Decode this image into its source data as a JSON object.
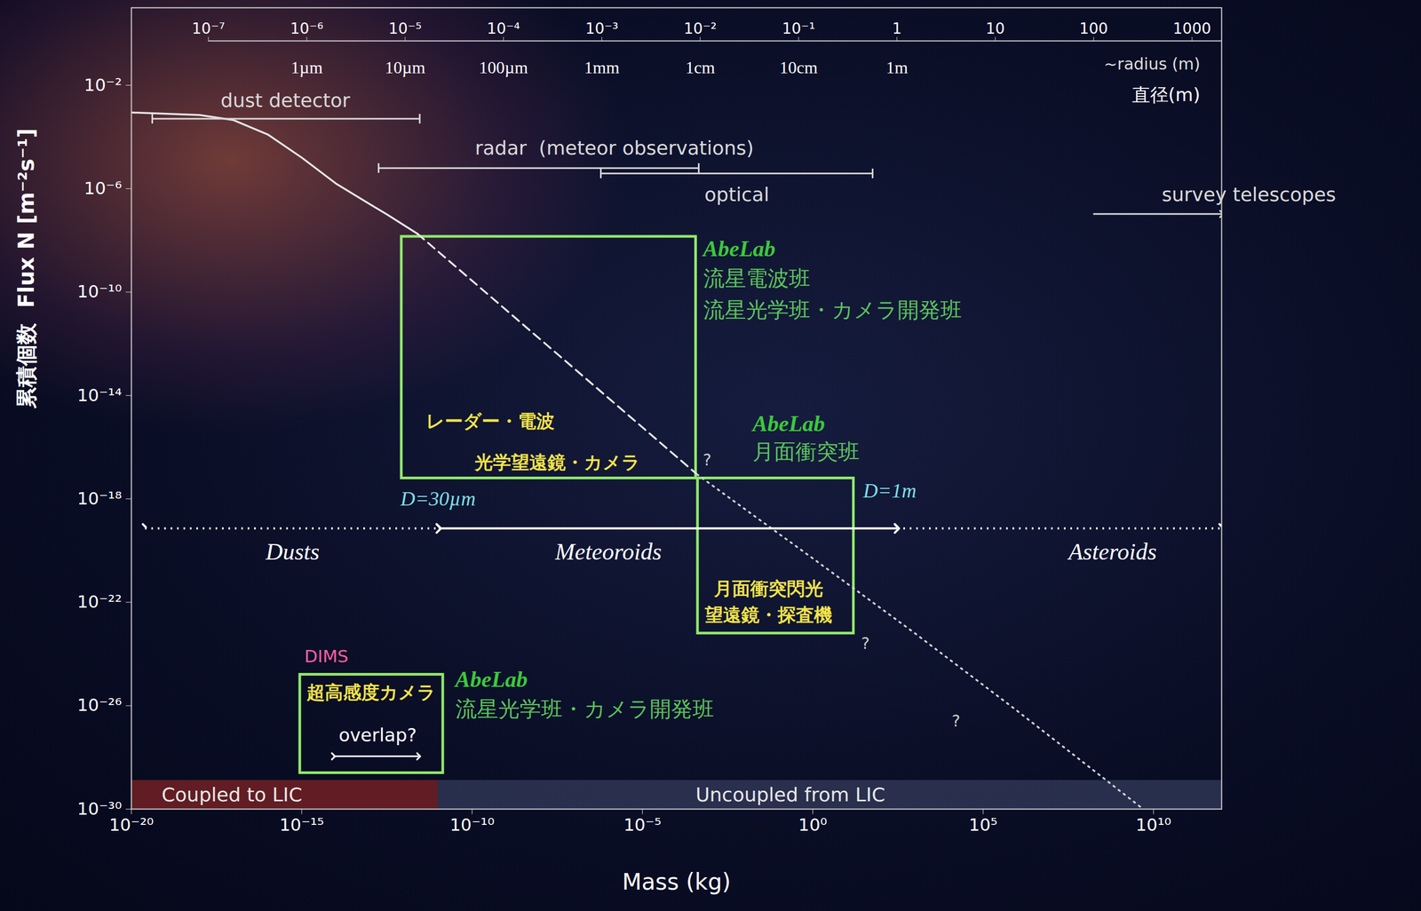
{
  "chart_data": {
    "type": "line",
    "x_label": "Mass (kg)",
    "y_label": "累積個数  Flux N [m⁻²s⁻¹]",
    "log": true,
    "xlim": [
      1e-20,
      1000000000000.0
    ],
    "ylim": [
      1e-30,
      10
    ],
    "xticks": [
      {
        "value": 1e-20,
        "label": "10⁻²⁰"
      },
      {
        "value": 1e-15,
        "label": "10⁻¹⁵"
      },
      {
        "value": 1e-10,
        "label": "10⁻¹⁰"
      },
      {
        "value": 1e-05,
        "label": "10⁻⁵"
      },
      {
        "value": 1,
        "label": "10⁰"
      },
      {
        "value": 100000.0,
        "label": "10⁵"
      },
      {
        "value": 10000000000.0,
        "label": "10¹⁰"
      }
    ],
    "yticks": [
      {
        "value": 1e-30,
        "label": "10⁻³⁰"
      },
      {
        "value": 1e-26,
        "label": "10⁻²⁶"
      },
      {
        "value": 1e-22,
        "label": "10⁻²²"
      },
      {
        "value": 1e-18,
        "label": "10⁻¹⁸"
      },
      {
        "value": 1e-14,
        "label": "10⁻¹⁴"
      },
      {
        "value": 1e-10,
        "label": "10⁻¹⁰"
      },
      {
        "value": 1e-06,
        "label": "10⁻⁶"
      },
      {
        "value": 0.01,
        "label": "10⁻²"
      }
    ],
    "x2_label": "~radius (m)",
    "x2_sublabel": "直径(m)",
    "x2lim": [
      1.65e-08,
      2000
    ],
    "x2ticks": [
      {
        "value": 1e-07,
        "label": "10⁻⁷"
      },
      {
        "value": 1e-06,
        "label": "10⁻⁶"
      },
      {
        "value": 1e-05,
        "label": "10⁻⁵"
      },
      {
        "value": 0.0001,
        "label": "10⁻⁴"
      },
      {
        "value": 0.001,
        "label": "10⁻³"
      },
      {
        "value": 0.01,
        "label": "10⁻²"
      },
      {
        "value": 0.1,
        "label": "10⁻¹"
      },
      1,
      10,
      100,
      1000
    ],
    "x2_unit_labels": [
      {
        "value": 1e-06,
        "label": "1µm"
      },
      {
        "value": 1e-05,
        "label": "10µm"
      },
      {
        "value": 0.0001,
        "label": "100µm"
      },
      {
        "value": 0.001,
        "label": "1mm"
      },
      {
        "value": 0.01,
        "label": "1cm"
      },
      {
        "value": 0.1,
        "label": "10cm"
      },
      {
        "value": 1,
        "label": "1m"
      }
    ],
    "series": [
      {
        "line_style": "solid",
        "color": "#e6e6e6",
        "x": [
          1e-20,
          1e-18,
          1e-17,
          1e-16,
          1e-15,
          1e-14,
          1e-13,
          3.2e-13,
          2.5e-12
        ],
        "values": [
          0.00089,
          0.00071,
          0.00045,
          0.000126,
          1.6e-05,
          1.6e-06,
          2.5e-07,
          1e-07,
          1.8e-08
        ]
      },
      {
        "line_style": "dashed",
        "color": "#e6e6e6",
        "x": [
          2.5e-12,
          4e-08,
          0.0004
        ],
        "values": [
          1.8e-08,
          3.1e-13,
          8.9e-18
        ]
      },
      {
        "line_style": "dotted",
        "color": "#d0d0d0",
        "x": [
          0.0004,
          1,
          1000,
          1000000.0,
          5000000000.0
        ],
        "values": [
          8.9e-18,
          5e-21,
          6.3e-24,
          6.3e-27,
          1e-30
        ]
      }
    ],
    "ranges": [
      {
        "label": "dust detector",
        "x": [
          4.1e-20,
          2.9e-12
        ],
        "y": 0.00051,
        "label_x": 3.3e-16,
        "label_y": 0.0025,
        "marker": "bar",
        "color": "#d9d9d9"
      },
      {
        "label": "radar  (meteor observations)",
        "x": [
          1.8e-13,
          0.00045
        ],
        "y": 6.3e-06,
        "label_x": 1.5e-06,
        "label_y": 3.6e-05,
        "marker": "bar",
        "color": "#d9d9d9"
      },
      {
        "label": "optical",
        "x": [
          6e-07,
          57
        ],
        "y": 3.9e-06,
        "label_x": 0.0059,
        "label_y": 5.6e-07,
        "marker": "bar",
        "color": "#d9d9d9"
      },
      {
        "label": "survey telescopes",
        "x": [
          170000000.0,
          1000000000000.0
        ],
        "y": 1.05e-07,
        "label_x": 6300000000000.0,
        "label_y": 5.6e-07,
        "marker": "arrow",
        "color": "#d9d9d9"
      }
    ],
    "classes": {
      "y": 7.2e-20,
      "label_y": 8.9e-21,
      "marker": "arrow",
      "color": "#ffffff",
      "items": [
        {
          "label": "Dusts",
          "x": [
            2.5e-20,
            1.05e-11
          ],
          "label_x": 5.4e-16,
          "line_style": "dotted"
        },
        {
          "label": "Meteoroids",
          "x": [
            1.05e-11,
            295
          ],
          "label_x": 1e-06,
          "line_style": "solid"
        },
        {
          "label": "Asteroids",
          "x": [
            295,
            1000000000000.0
          ],
          "label_x": 630000000.0,
          "line_style": "dotted"
        }
      ],
      "boundaries": [
        {
          "label": "D=30µm",
          "x": 7.9e-13,
          "y": 1e-18,
          "color": "#7fdfe6"
        },
        {
          "label": "D=1m",
          "x": 30,
          "y": 2e-18,
          "color": "#7fdfe6"
        }
      ]
    },
    "boxes": [
      {
        "x": [
          8.5e-13,
          0.00037
        ],
        "y": [
          6.3e-18,
          1.4e-08
        ],
        "color": "#8fe86a",
        "lab": {
          "text": "AbeLab",
          "x": 0.0006,
          "y": 4.6e-09,
          "color": "#3cc83c"
        },
        "groups": [
          {
            "text": "流星電波班",
            "x": 0.0006,
            "y": 3.2e-10,
            "color": "#5cc45c"
          },
          {
            "text": "流星光学班・カメラ開発班",
            "x": 0.0006,
            "y": 1.95e-11,
            "color": "#5cc45c"
          }
        ],
        "methods": [
          {
            "text": "レーダー・電波",
            "x": 3.4e-10,
            "y": 1e-15,
            "color": "#f3e44a"
          },
          {
            "text": "光学望遠鏡・カメラ",
            "x": 3.2e-08,
            "y": 2.5e-17,
            "color": "#f3e44a"
          }
        ]
      },
      {
        "x": [
          0.00042,
          15.8
        ],
        "y": [
          6.3e-24,
          6.3e-18
        ],
        "color": "#8fe86a",
        "lab": {
          "text": "AbeLab",
          "x": 0.017,
          "y": 7.9e-16,
          "color": "#3cc83c"
        },
        "groups": [
          {
            "text": "月面衝突班",
            "x": 0.017,
            "y": 6.3e-17,
            "color": "#5cc45c"
          }
        ],
        "methods": [
          {
            "text": "月面衝突閃光",
            "x": 0.05,
            "y": 3.2e-22,
            "color": "#f3e44a"
          },
          {
            "text": "望遠鏡・探査機",
            "x": 0.05,
            "y": 3.2e-23,
            "color": "#f3e44a"
          }
        ]
      },
      {
        "x": [
          8.9e-16,
          1.4e-11
        ],
        "y": [
          2.5e-29,
          1.6e-25
        ],
        "color": "#8fe86a",
        "instrument": {
          "text": "DIMS",
          "x": 1.2e-15,
          "y": 7.9e-25,
          "color": "#ff5fa8"
        },
        "lab": {
          "text": "AbeLab",
          "x": 3.2e-11,
          "y": 1e-25,
          "color": "#3cc83c"
        },
        "groups": [
          {
            "text": "流星光学班・カメラ開発班",
            "x": 3.2e-11,
            "y": 7.1e-27,
            "color": "#5cc45c"
          }
        ],
        "methods": [
          {
            "text": "超高感度カメラ",
            "x": 1.1e-13,
            "y": 3.2e-26,
            "color": "#f3e44a"
          }
        ],
        "overlap": {
          "text": "overlap?",
          "x": 1.7e-13,
          "y": 6.9e-28,
          "arrow_x": [
            8.5e-15,
            2.7e-12
          ],
          "arrow_y": 1.1e-28,
          "color": "#ffffff"
        }
      }
    ],
    "lic_band": {
      "y": [
        1e-30,
        1.3e-29
      ],
      "label_y": 3.5e-30,
      "items": [
        {
          "label": "Coupled to LIC",
          "x": [
            1e-20,
            1e-11
          ],
          "label_x": 8.9e-18,
          "color": "#6b1f24"
        },
        {
          "label": "Uncoupled from LIC",
          "x": [
            1e-11,
            1000000000000.0
          ],
          "label_x": 0.22,
          "color": "#2c3352"
        }
      ]
    },
    "annotations": [
      {
        "text": "?",
        "x": 0.00079,
        "y": 3.2e-17,
        "color": "#cccccc"
      },
      {
        "text": "?",
        "x": 35,
        "y": 2.5e-24,
        "color": "#cccccc"
      },
      {
        "text": "?",
        "x": 16000.0,
        "y": 2.5e-27,
        "color": "#cccccc"
      }
    ]
  }
}
